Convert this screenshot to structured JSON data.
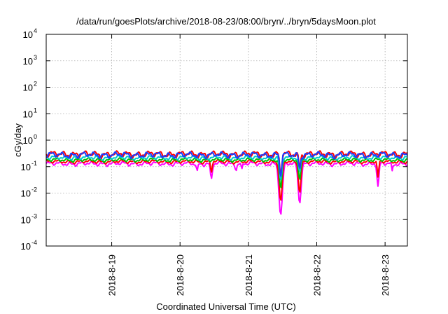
{
  "chart_data": {
    "type": "line",
    "title": "/data/run/goesPlots/archive/2018-08-23/08:00/bryn/../bryn/5daysMoon.plot",
    "xlabel": "Coordinated Universal Time (UTC)",
    "ylabel": "cGy/day",
    "yscale": "log",
    "ylim": [
      0.0001,
      10000
    ],
    "xlim": [
      "2018-08-18 01:00",
      "2018-08-23 07:50"
    ],
    "grid": true,
    "y_ticks": [
      {
        "base": "10",
        "exp": "-4",
        "value": 0.0001
      },
      {
        "base": "10",
        "exp": "-3",
        "value": 0.001
      },
      {
        "base": "10",
        "exp": "-2",
        "value": 0.01
      },
      {
        "base": "10",
        "exp": "-1",
        "value": 0.1
      },
      {
        "base": "10",
        "exp": "0",
        "value": 1
      },
      {
        "base": "10",
        "exp": "1",
        "value": 10
      },
      {
        "base": "10",
        "exp": "2",
        "value": 100
      },
      {
        "base": "10",
        "exp": "3",
        "value": 1000
      },
      {
        "base": "10",
        "exp": "4",
        "value": 10000
      }
    ],
    "x_ticks": [
      {
        "label": "2018-8-19",
        "value": "2018-08-19 00:00"
      },
      {
        "label": "2018-8-20",
        "value": "2018-08-20 00:00"
      },
      {
        "label": "2018-8-21",
        "value": "2018-08-21 00:00"
      },
      {
        "label": "2018-8-22",
        "value": "2018-08-22 00:00"
      },
      {
        "label": "2018-8-23",
        "value": "2018-08-23 00:00"
      }
    ],
    "series": [
      {
        "color": "#ff00ff",
        "base": 0.13,
        "amp": 0.015,
        "dips": [
          {
            "x": "2018-08-21 11:20",
            "y": 0.0015,
            "w": 0.035
          },
          {
            "x": "2018-08-21 18:00",
            "y": 0.004,
            "w": 0.03
          },
          {
            "x": "2018-08-20 11:00",
            "y": 0.035,
            "w": 0.02
          },
          {
            "x": "2018-08-22 21:30",
            "y": 0.018,
            "w": 0.02
          },
          {
            "x": "2018-08-20 06:00",
            "y": 0.07,
            "w": 0.015
          },
          {
            "x": "2018-08-20 19:40",
            "y": 0.07,
            "w": 0.015
          },
          {
            "x": "2018-08-20 21:40",
            "y": 0.08,
            "w": 0.012
          },
          {
            "x": "2018-08-23 02:30",
            "y": 0.07,
            "w": 0.012
          }
        ]
      },
      {
        "color": "#ff0000",
        "base": 0.155,
        "amp": 0.015,
        "dips": [
          {
            "x": "2018-08-21 11:20",
            "y": 0.005,
            "w": 0.03
          },
          {
            "x": "2018-08-21 18:00",
            "y": 0.01,
            "w": 0.025
          },
          {
            "x": "2018-08-20 11:00",
            "y": 0.06,
            "w": 0.015
          },
          {
            "x": "2018-08-22 21:30",
            "y": 0.04,
            "w": 0.015
          }
        ]
      },
      {
        "color": "#00c000",
        "base": 0.18,
        "amp": 0.018,
        "dips": [
          {
            "x": "2018-08-21 11:20",
            "y": 0.015,
            "w": 0.025
          },
          {
            "x": "2018-08-21 18:00",
            "y": 0.03,
            "w": 0.02
          }
        ]
      },
      {
        "color": "#00cccc",
        "base": 0.22,
        "amp": 0.025,
        "dips": [
          {
            "x": "2018-08-21 11:20",
            "y": 0.03,
            "w": 0.025
          },
          {
            "x": "2018-08-21 18:00",
            "y": 0.06,
            "w": 0.02
          }
        ]
      },
      {
        "color": "#ff0000",
        "base": 0.3,
        "amp": 0.05,
        "dips": [
          {
            "x": "2018-08-21 11:20",
            "y": 0.05,
            "w": 0.02
          },
          {
            "x": "2018-08-21 18:00",
            "y": 0.09,
            "w": 0.018
          }
        ]
      },
      {
        "color": "#1a3cff",
        "base": 0.28,
        "amp": 0.045,
        "dips": [
          {
            "x": "2018-08-21 11:20",
            "y": 0.04,
            "w": 0.02
          },
          {
            "x": "2018-08-21 18:00",
            "y": 0.08,
            "w": 0.018
          }
        ]
      }
    ]
  }
}
